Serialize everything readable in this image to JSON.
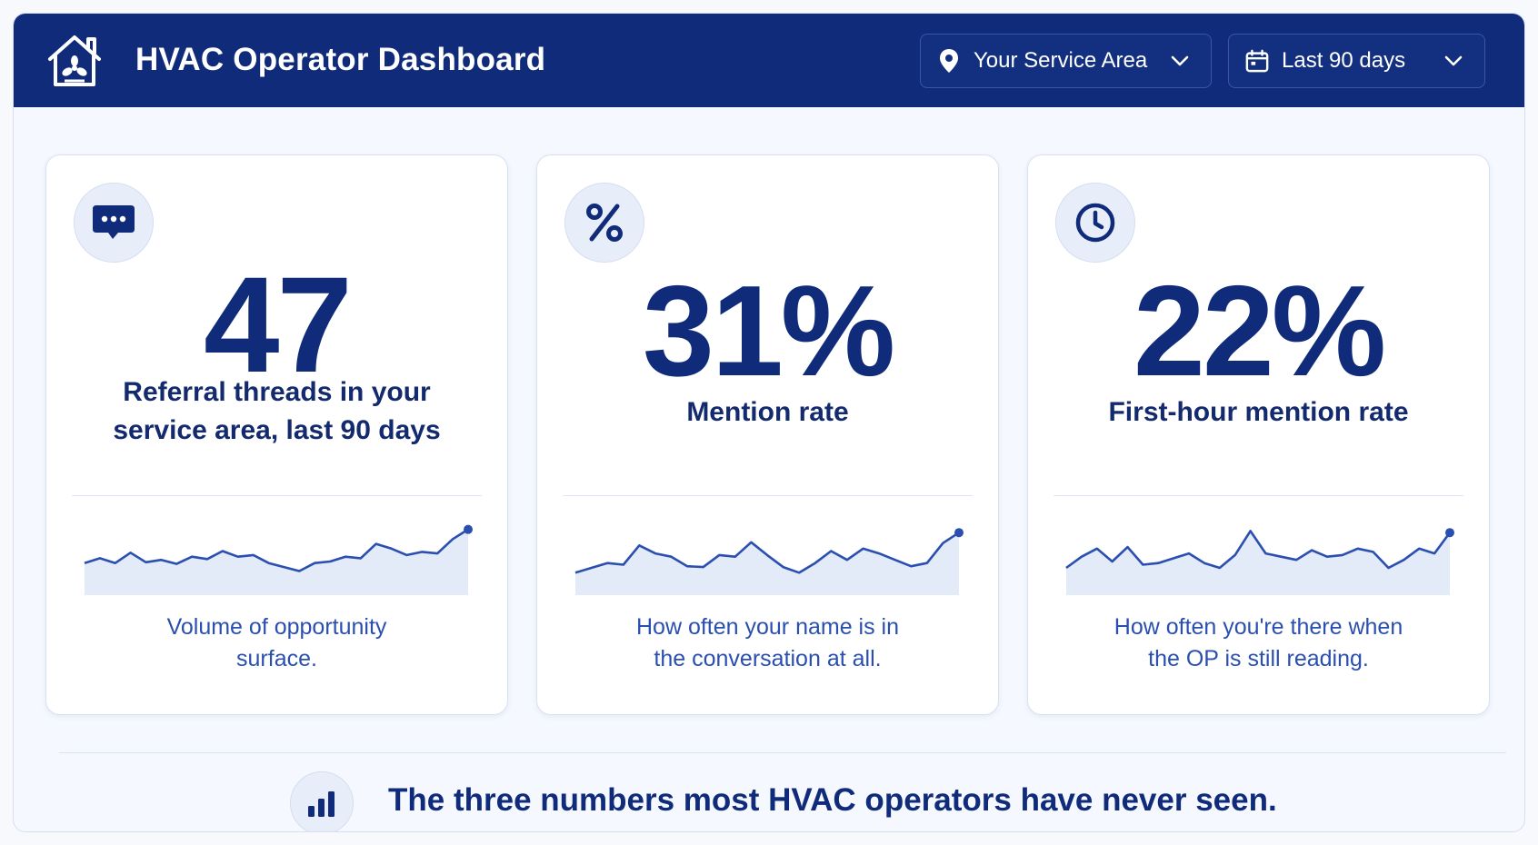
{
  "header": {
    "title": "HVAC Operator Dashboard",
    "logo_icon": "house-fan-icon",
    "area_filter": {
      "label": "Your Service Area",
      "icon": "map-pin-icon"
    },
    "range_filter": {
      "label": "Last 90 days",
      "icon": "calendar-icon"
    }
  },
  "colors": {
    "brand": "#0f2b7a",
    "accent": "#2a4fb0",
    "background": "#f5f8fe"
  },
  "metrics": [
    {
      "icon": "chat-bubble-icon",
      "value": "47",
      "label_line1": "Referral threads in your",
      "label_line2": "service area, last 90 days",
      "caption_line1": "Volume of opportunity",
      "caption_line2": "surface.",
      "trend": [
        40,
        46,
        40,
        53,
        41,
        44,
        39,
        48,
        45,
        55,
        48,
        50,
        40,
        35,
        30,
        40,
        42,
        48,
        46,
        64,
        58,
        50,
        54,
        52,
        70,
        82
      ]
    },
    {
      "icon": "percent-icon",
      "value": "31%",
      "label": "Mention rate",
      "caption_line1": "How often your name is in",
      "caption_line2": "the conversation at all.",
      "trend": [
        28,
        34,
        40,
        38,
        62,
        52,
        48,
        36,
        35,
        50,
        48,
        66,
        50,
        35,
        28,
        40,
        55,
        44,
        58,
        52,
        44,
        36,
        40,
        65,
        78
      ]
    },
    {
      "icon": "clock-icon",
      "value": "22%",
      "label": "First-hour mention rate",
      "caption_line1": "How often you're there when",
      "caption_line2": "the OP is still reading.",
      "trend": [
        34,
        48,
        58,
        42,
        60,
        38,
        40,
        46,
        52,
        40,
        34,
        50,
        80,
        52,
        48,
        44,
        56,
        48,
        50,
        58,
        54,
        34,
        44,
        58,
        52,
        78
      ]
    }
  ],
  "footer": {
    "icon": "bar-chart-icon",
    "text": "The three numbers most HVAC operators have never seen."
  }
}
